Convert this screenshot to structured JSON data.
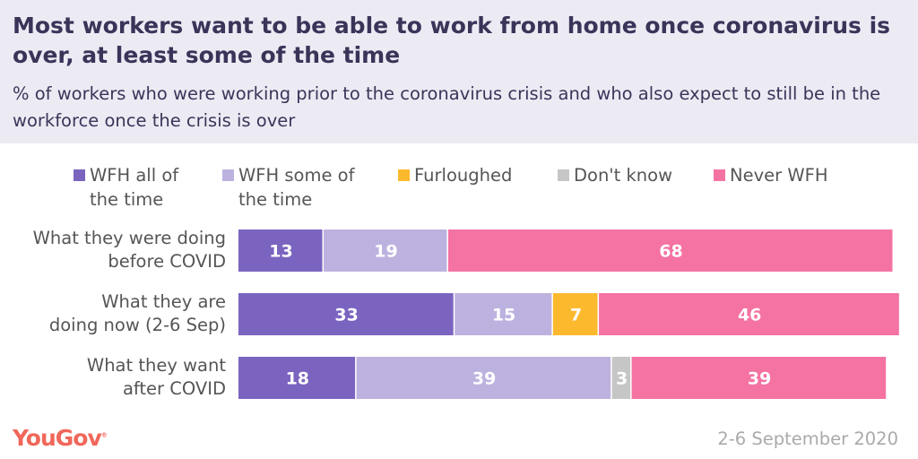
{
  "chart_data": {
    "type": "bar",
    "orientation": "horizontal-stacked",
    "title": "Most workers want to be able to work from home once coronavirus is over, at least some of the time",
    "subtitle": "% of workers who were working prior to the coronavirus crisis and who also expect to still be in the workforce once the crisis is over",
    "categories": [
      "What they were doing before COVID",
      "What they are doing now (2-6 Sep)",
      "What they want after COVID"
    ],
    "series": [
      {
        "name": "WFH all of the time",
        "color": "#7b64c0",
        "values": [
          13,
          33,
          18
        ]
      },
      {
        "name": "WFH some of the time",
        "color": "#bdb2df",
        "values": [
          19,
          15,
          39
        ]
      },
      {
        "name": "Furloughed",
        "color": "#fdb92e",
        "values": [
          0,
          7,
          0
        ]
      },
      {
        "name": "Don't know",
        "color": "#c6c6c6",
        "values": [
          0,
          0,
          3
        ]
      },
      {
        "name": "Never WFH",
        "color": "#f473a2",
        "values": [
          68,
          46,
          39
        ]
      }
    ],
    "xlim": [
      0,
      100
    ],
    "legend": "top",
    "grid": false
  },
  "branding": {
    "logo": "YouGov",
    "date": "2-6 September 2020"
  }
}
